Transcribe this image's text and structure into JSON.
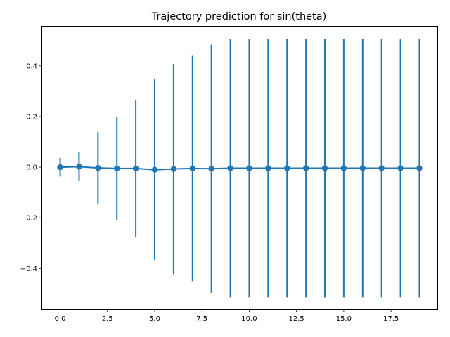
{
  "chart_data": {
    "type": "line",
    "title": "Trajectory prediction for sin(theta)",
    "xlabel": "",
    "ylabel": "",
    "xlim": [
      -0.95,
      19.95
    ],
    "ylim": [
      -0.56,
      0.555
    ],
    "xticks": [
      0,
      2.5,
      5,
      7.5,
      10,
      12.5,
      15,
      17.5
    ],
    "xtick_labels": [
      "0.0",
      "2.5",
      "5.0",
      "7.5",
      "10.0",
      "12.5",
      "15.0",
      "17.5"
    ],
    "yticks": [
      -0.4,
      -0.2,
      0.0,
      0.2,
      0.4
    ],
    "ytick_labels": [
      "−0.4",
      "−0.2",
      "0.0",
      "0.2",
      "0.4"
    ],
    "grid": false,
    "color": "#1f77b4",
    "series": [
      {
        "x": [
          0,
          1,
          2,
          3,
          4,
          5,
          6,
          7,
          8,
          9,
          10,
          11,
          12,
          13,
          14,
          15,
          16,
          17,
          18,
          19
        ],
        "y": [
          0.0,
          0.002,
          -0.003,
          -0.005,
          -0.005,
          -0.01,
          -0.007,
          -0.005,
          -0.006,
          -0.004,
          -0.004,
          -0.004,
          -0.004,
          -0.004,
          -0.004,
          -0.004,
          -0.004,
          -0.004,
          -0.004,
          -0.004
        ],
        "err": [
          0.037,
          0.057,
          0.142,
          0.205,
          0.27,
          0.357,
          0.415,
          0.445,
          0.49,
          0.51,
          0.51,
          0.51,
          0.51,
          0.51,
          0.51,
          0.51,
          0.51,
          0.51,
          0.51,
          0.51
        ]
      }
    ]
  }
}
